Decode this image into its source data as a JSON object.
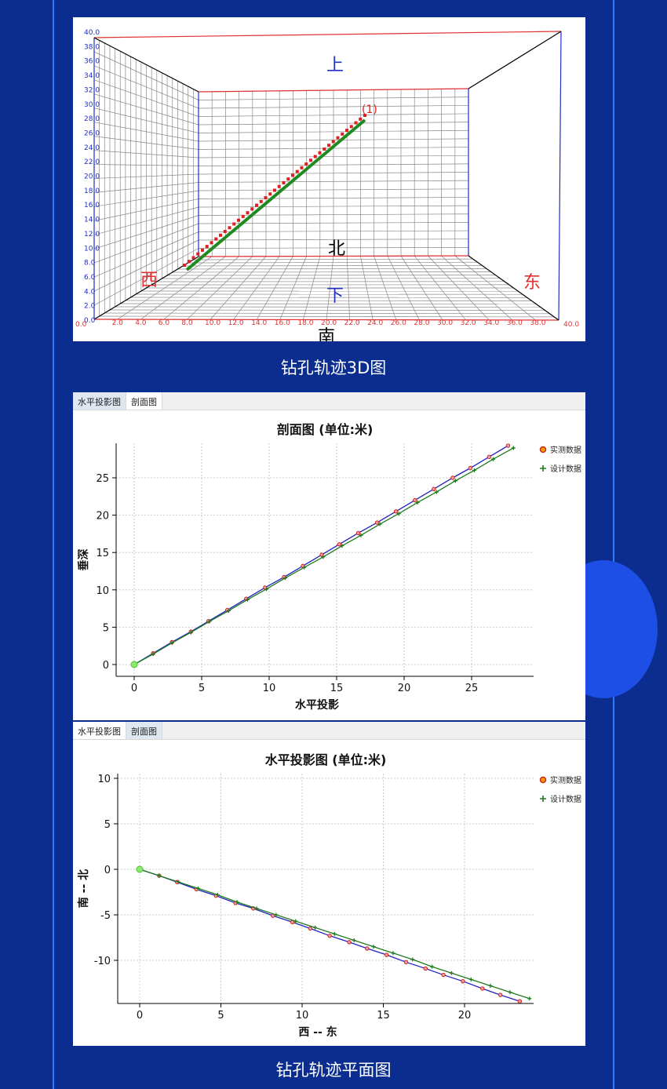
{
  "captions": {
    "chart3d": "钻孔轨迹3D图",
    "plan": "钻孔轨迹平面图"
  },
  "chart3d": {
    "vertical_ticks": [
      "0.0",
      "2.0",
      "4.0",
      "6.0",
      "8.0",
      "10.0",
      "12.0",
      "14.0",
      "16.0",
      "18.0",
      "20.0",
      "22.0",
      "24.0",
      "26.0",
      "28.0",
      "30.0",
      "32.0",
      "34.0",
      "36.0",
      "38.0",
      "40.0"
    ],
    "horizontal_ticks": [
      "0.0",
      "2.0",
      "4.0",
      "6.0",
      "8.0",
      "10.0",
      "12.0",
      "14.0",
      "16.0",
      "18.0",
      "20.0",
      "22.0",
      "24.0",
      "26.0",
      "28.0",
      "30.0",
      "32.0",
      "34.0",
      "36.0",
      "38.0",
      "40.0"
    ],
    "directions": {
      "up": "上",
      "down": "下",
      "north": "北",
      "south": "南",
      "west": "西",
      "east": "东"
    },
    "trajectory_label": "(1)",
    "colors": {
      "measured": "#e02020",
      "design": "#1f8a1f",
      "frame_red": "#e03030",
      "frame_blue": "#2030c0"
    }
  },
  "profile_panel": {
    "tabs": [
      {
        "label": "水平投影图",
        "active": false
      },
      {
        "label": "剖面图",
        "active": true
      }
    ]
  },
  "plan_panel": {
    "tabs": [
      {
        "label": "水平投影图",
        "active": true
      },
      {
        "label": "剖面图",
        "active": false
      }
    ]
  },
  "chart_data": [
    {
      "type": "line",
      "title": "剖面图 (单位:米)",
      "xlabel": "水平投影",
      "ylabel": "垂深",
      "xticks": [
        0,
        5,
        10,
        15,
        20,
        25
      ],
      "yticks": [
        0,
        5,
        10,
        15,
        20,
        25
      ],
      "grid": true,
      "legend": "top-right",
      "series": [
        {
          "name": "实测数据",
          "color": "#d02020",
          "marker": "circle",
          "x": [
            0,
            1.4,
            2.8,
            4.2,
            5.5,
            6.9,
            8.3,
            9.7,
            11.1,
            12.5,
            13.9,
            15.2,
            16.6,
            18.0,
            19.4,
            20.8,
            22.2,
            23.6,
            24.9,
            26.3,
            27.7
          ],
          "y": [
            0,
            1.5,
            3.0,
            4.4,
            5.8,
            7.3,
            8.8,
            10.3,
            11.7,
            13.2,
            14.7,
            16.1,
            17.6,
            19.0,
            20.5,
            22.0,
            23.5,
            25.0,
            26.3,
            27.8,
            29.3
          ]
        },
        {
          "name": "设计数据",
          "color": "#1f7a1f",
          "marker": "plus",
          "x": [
            0,
            1.4,
            2.8,
            4.2,
            5.6,
            7.0,
            8.4,
            9.8,
            11.2,
            12.6,
            14.0,
            15.4,
            16.8,
            18.2,
            19.6,
            21.0,
            22.4,
            23.8,
            25.2,
            26.6,
            28.1
          ],
          "y": [
            0,
            1.4,
            2.9,
            4.3,
            5.8,
            7.2,
            8.7,
            10.1,
            11.6,
            13.0,
            14.4,
            15.9,
            17.3,
            18.8,
            20.2,
            21.7,
            23.1,
            24.6,
            26.0,
            27.5,
            29.0
          ]
        }
      ]
    },
    {
      "type": "line",
      "title": "水平投影图 (单位:米)",
      "xlabel": "西  --  东",
      "ylabel": "南  --  北",
      "xticks": [
        0,
        5,
        10,
        15,
        20
      ],
      "yticks": [
        10,
        5,
        0,
        -5,
        -10
      ],
      "grid": true,
      "legend": "top-right",
      "series": [
        {
          "name": "实测数据",
          "color": "#d02020",
          "marker": "circle",
          "x": [
            0,
            1.2,
            2.3,
            3.5,
            4.7,
            5.9,
            7.0,
            8.2,
            9.4,
            10.5,
            11.7,
            12.9,
            14.0,
            15.2,
            16.4,
            17.6,
            18.7,
            19.9,
            21.1,
            22.2,
            23.4
          ],
          "y": [
            0,
            -0.7,
            -1.4,
            -2.2,
            -2.9,
            -3.7,
            -4.3,
            -5.1,
            -5.8,
            -6.5,
            -7.3,
            -8.0,
            -8.7,
            -9.4,
            -10.2,
            -10.9,
            -11.6,
            -12.3,
            -13.1,
            -13.8,
            -14.5
          ]
        },
        {
          "name": "设计数据",
          "color": "#1f7a1f",
          "marker": "plus",
          "x": [
            0,
            1.2,
            2.4,
            3.6,
            4.8,
            6.0,
            7.2,
            8.4,
            9.6,
            10.8,
            12.0,
            13.2,
            14.4,
            15.6,
            16.8,
            18.0,
            19.2,
            20.4,
            21.6,
            22.8,
            24.0
          ],
          "y": [
            0,
            -0.7,
            -1.4,
            -2.1,
            -2.8,
            -3.6,
            -4.3,
            -5.0,
            -5.7,
            -6.4,
            -7.1,
            -7.8,
            -8.5,
            -9.2,
            -9.9,
            -10.7,
            -11.4,
            -12.1,
            -12.8,
            -13.5,
            -14.2
          ]
        }
      ]
    }
  ]
}
